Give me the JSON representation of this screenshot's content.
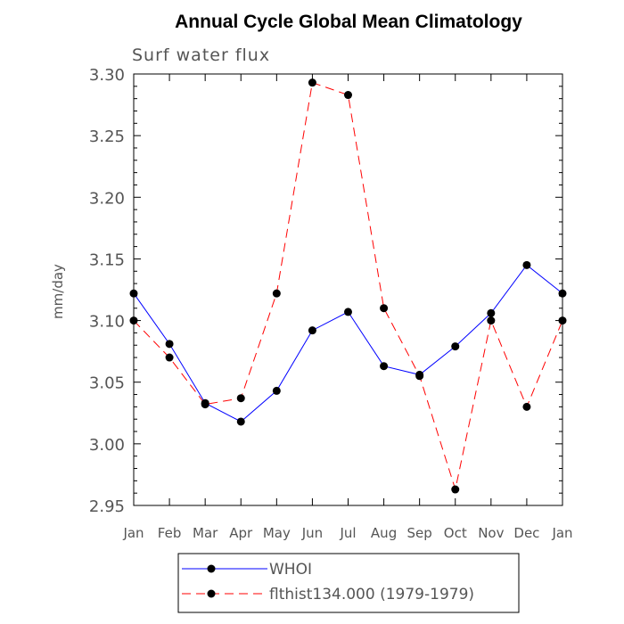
{
  "chart_data": {
    "type": "line",
    "title": "Annual Cycle Global Mean Climatology",
    "subtitle": "Surf water flux",
    "xlabel": "",
    "ylabel": "mm/day",
    "categories": [
      "Jan",
      "Feb",
      "Mar",
      "Apr",
      "May",
      "Jun",
      "Jul",
      "Aug",
      "Sep",
      "Oct",
      "Nov",
      "Dec",
      "Jan"
    ],
    "ylim": [
      2.95,
      3.3
    ],
    "yticks": [
      "2.95",
      "3.00",
      "3.05",
      "3.10",
      "3.15",
      "3.20",
      "3.25",
      "3.30"
    ],
    "grid": false,
    "legend_position": "bottom",
    "series": [
      {
        "name": "WHOI",
        "color": "#0000ff",
        "dash": "solid",
        "values": [
          3.122,
          3.081,
          3.033,
          3.018,
          3.043,
          3.092,
          3.107,
          3.063,
          3.056,
          3.079,
          3.106,
          3.145,
          3.122
        ]
      },
      {
        "name": "flthist134.000 (1979-1979)",
        "color": "#ff0000",
        "dash": "dashed",
        "values": [
          3.1,
          3.07,
          3.032,
          3.037,
          3.122,
          3.293,
          3.283,
          3.11,
          3.055,
          2.963,
          3.1,
          3.03,
          3.1
        ]
      }
    ]
  }
}
